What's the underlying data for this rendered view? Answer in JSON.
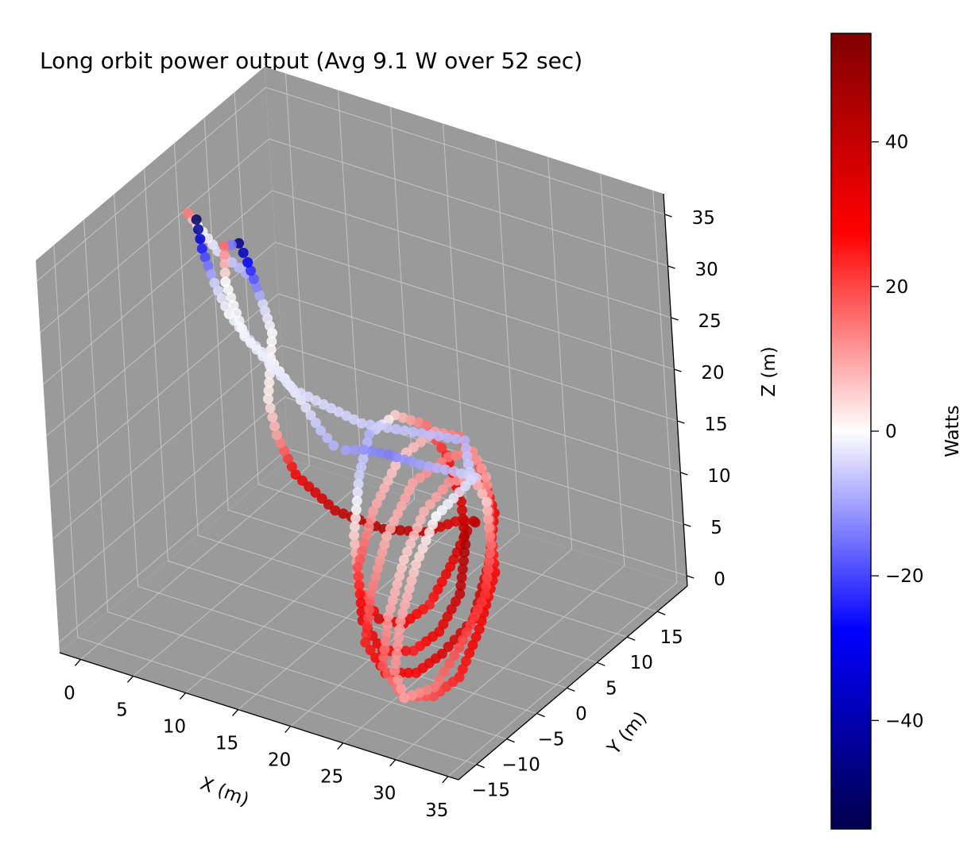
{
  "chart_data": {
    "type": "scatter",
    "projection": "3d",
    "title": "Long orbit power output (Avg 9.1 W over 52 sec)",
    "xlabel": "X (m)",
    "ylabel": "Y (m)",
    "zlabel": "Z (m)",
    "xlim": [
      -2,
      36
    ],
    "ylim": [
      -18,
      20
    ],
    "zlim": [
      -1,
      37
    ],
    "x_ticks": [
      "0",
      "5",
      "10",
      "15",
      "20",
      "25",
      "30",
      "35"
    ],
    "y_ticks": [
      "−15",
      "−10",
      "−5",
      "0",
      "5",
      "10",
      "15"
    ],
    "z_ticks": [
      "0",
      "5",
      "10",
      "15",
      "20",
      "25",
      "30",
      "35"
    ],
    "grid": true,
    "pane_color": "#9a9a9a",
    "colormap": "seismic",
    "colorbar": {
      "label": "Watts",
      "range": [
        -55,
        55
      ],
      "ticks": [
        "40",
        "20",
        "0",
        "−20",
        "−40"
      ],
      "tick_values": [
        40,
        20,
        0,
        -20,
        -40
      ]
    },
    "series": [
      {
        "points": [
          {
            "x": 30,
            "y": -4,
            "z": 23,
            "w": -8
          },
          {
            "x": 25,
            "y": -12,
            "z": 27,
            "w": -5
          },
          {
            "x": 21,
            "y": -16,
            "z": 31,
            "w": -3
          },
          {
            "x": 16,
            "y": -15,
            "z": 34,
            "w": -1
          },
          {
            "x": 12,
            "y": -11,
            "z": 36,
            "w": 0
          },
          {
            "x": 9,
            "y": -6,
            "z": 36,
            "w": 16
          },
          {
            "x": 8,
            "y": -2,
            "z": 34,
            "w": -45
          },
          {
            "x": 7.5,
            "y": 0,
            "z": 31,
            "w": -28
          },
          {
            "x": 7.5,
            "y": 2,
            "z": 26,
            "w": -4
          },
          {
            "x": 7,
            "y": 4,
            "z": 22,
            "w": 0
          },
          {
            "x": 6,
            "y": 5,
            "z": 18,
            "w": 1
          },
          {
            "x": 5,
            "y": 6,
            "z": 14,
            "w": 2
          },
          {
            "x": 5,
            "y": 7,
            "z": 10,
            "w": 10
          },
          {
            "x": 6,
            "y": 8,
            "z": 6,
            "w": 30
          },
          {
            "x": 9,
            "y": 9,
            "z": 3,
            "w": 40
          },
          {
            "x": 13,
            "y": 10,
            "z": 2,
            "w": 44
          },
          {
            "x": 17,
            "y": 10,
            "z": 3,
            "w": 40
          },
          {
            "x": 20,
            "y": 10,
            "z": 5,
            "w": 35
          },
          {
            "x": 23,
            "y": 8,
            "z": 7,
            "w": 38
          },
          {
            "x": 25,
            "y": 5,
            "z": 9,
            "w": 42
          },
          {
            "x": 26,
            "y": 2,
            "z": 10,
            "w": 40
          },
          {
            "x": 26,
            "y": -1,
            "z": 8,
            "w": 32
          },
          {
            "x": 25,
            "y": -3,
            "z": 5,
            "w": 25
          },
          {
            "x": 23,
            "y": -4,
            "z": 3,
            "w": 30
          },
          {
            "x": 20,
            "y": -3,
            "z": 2,
            "w": 35
          },
          {
            "x": 17,
            "y": -1,
            "z": 3,
            "w": 15
          },
          {
            "x": 15,
            "y": 2,
            "z": 6,
            "w": 5
          },
          {
            "x": 14,
            "y": 5,
            "z": 10,
            "w": -5
          },
          {
            "x": 14,
            "y": 7,
            "z": 13,
            "w": -8
          },
          {
            "x": 16,
            "y": 8,
            "z": 15,
            "w": 5
          },
          {
            "x": 19,
            "y": 8,
            "z": 15,
            "w": 15
          },
          {
            "x": 22,
            "y": 6,
            "z": 14,
            "w": 25
          },
          {
            "x": 25,
            "y": 3,
            "z": 12,
            "w": 35
          },
          {
            "x": 27,
            "y": 0,
            "z": 10,
            "w": 45
          },
          {
            "x": 28,
            "y": -3,
            "z": 7,
            "w": 40
          },
          {
            "x": 27,
            "y": -5,
            "z": 4,
            "w": 30
          },
          {
            "x": 25,
            "y": -6,
            "z": 2,
            "w": 25
          },
          {
            "x": 22,
            "y": -6,
            "z": 1,
            "w": 30
          },
          {
            "x": 19,
            "y": -4,
            "z": 2,
            "w": 32
          },
          {
            "x": 17,
            "y": -1,
            "z": 5,
            "w": 20
          },
          {
            "x": 17,
            "y": 2,
            "z": 9,
            "w": 10
          },
          {
            "x": 18,
            "y": 5,
            "z": 13,
            "w": 5
          },
          {
            "x": 21,
            "y": 6,
            "z": 16,
            "w": 10
          },
          {
            "x": 24,
            "y": 5,
            "z": 17,
            "w": 15
          },
          {
            "x": 27,
            "y": 3,
            "z": 16,
            "w": 20
          },
          {
            "x": 30,
            "y": 0,
            "z": 14,
            "w": 30
          },
          {
            "x": 31,
            "y": -3,
            "z": 11,
            "w": 35
          },
          {
            "x": 31,
            "y": -6,
            "z": 7,
            "w": 38
          },
          {
            "x": 29,
            "y": -8,
            "z": 4,
            "w": 35
          },
          {
            "x": 27,
            "y": -9,
            "z": 2,
            "w": 28
          },
          {
            "x": 24,
            "y": -9,
            "z": 1,
            "w": 30
          },
          {
            "x": 21,
            "y": -7,
            "z": 2,
            "w": 25
          },
          {
            "x": 20,
            "y": -4,
            "z": 5,
            "w": 15
          },
          {
            "x": 20,
            "y": -1,
            "z": 9,
            "w": 8
          },
          {
            "x": 21,
            "y": 2,
            "z": 13,
            "w": 10
          },
          {
            "x": 24,
            "y": 3,
            "z": 16,
            "w": 15
          },
          {
            "x": 27,
            "y": 2,
            "z": 18,
            "w": 12
          },
          {
            "x": 30,
            "y": -1,
            "z": 18,
            "w": 10
          },
          {
            "x": 32,
            "y": -4,
            "z": 16,
            "w": 20
          },
          {
            "x": 34,
            "y": -7,
            "z": 13,
            "w": 28
          },
          {
            "x": 34,
            "y": -10,
            "z": 9,
            "w": 30
          },
          {
            "x": 33,
            "y": -12,
            "z": 5,
            "w": 25
          },
          {
            "x": 31,
            "y": -13,
            "z": 3,
            "w": 20
          },
          {
            "x": 28,
            "y": -13,
            "z": 2,
            "w": 15
          },
          {
            "x": 25,
            "y": -11,
            "z": 3,
            "w": 18
          },
          {
            "x": 24,
            "y": -8,
            "z": 6,
            "w": 10
          },
          {
            "x": 24,
            "y": -5,
            "z": 10,
            "w": 5
          },
          {
            "x": 25,
            "y": -3,
            "z": 14,
            "w": 8
          },
          {
            "x": 27,
            "y": -2,
            "z": 17,
            "w": 12
          },
          {
            "x": 30,
            "y": -3,
            "z": 19,
            "w": 10
          },
          {
            "x": 33,
            "y": -6,
            "z": 19,
            "w": 5
          },
          {
            "x": 35,
            "y": -9,
            "z": 17,
            "w": 15
          },
          {
            "x": 36,
            "y": -12,
            "z": 14,
            "w": 22
          },
          {
            "x": 35,
            "y": -15,
            "z": 10,
            "w": 20
          },
          {
            "x": 33,
            "y": -16,
            "z": 6,
            "w": 15
          },
          {
            "x": 30,
            "y": -16,
            "z": 4,
            "w": 10
          },
          {
            "x": 28,
            "y": -14,
            "z": 5,
            "w": 12
          },
          {
            "x": 27,
            "y": -11,
            "z": 8,
            "w": 10
          },
          {
            "x": 27,
            "y": -8,
            "z": 12,
            "w": 5
          },
          {
            "x": 28,
            "y": -6,
            "z": 16,
            "w": 0
          },
          {
            "x": 31,
            "y": -5,
            "z": 20,
            "w": -4
          },
          {
            "x": 30,
            "y": -4,
            "z": 23,
            "w": -8
          }
        ]
      },
      {
        "points": [
          {
            "x": 3,
            "y": 8,
            "z": 24,
            "w": -10
          },
          {
            "x": 1,
            "y": 6,
            "z": 27,
            "w": -3
          },
          {
            "x": 1,
            "y": 3,
            "z": 31,
            "w": 0
          },
          {
            "x": 2,
            "y": 0,
            "z": 34,
            "w": 14
          },
          {
            "x": 4,
            "y": -2,
            "z": 35,
            "w": -52
          },
          {
            "x": 5,
            "y": -3,
            "z": 33,
            "w": -25
          },
          {
            "x": 6,
            "y": -3,
            "z": 30,
            "w": -5
          },
          {
            "x": 6,
            "y": -1,
            "z": 26,
            "w": 0
          },
          {
            "x": 6,
            "y": 2,
            "z": 22,
            "w": -4
          },
          {
            "x": 7,
            "y": 4,
            "z": 19,
            "w": 0
          },
          {
            "x": 10,
            "y": 3,
            "z": 17,
            "w": -2
          },
          {
            "x": 13,
            "y": 1,
            "z": 16,
            "w": -6
          },
          {
            "x": 16,
            "y": -2,
            "z": 17,
            "w": -8
          },
          {
            "x": 19,
            "y": -5,
            "z": 19,
            "w": -10
          },
          {
            "x": 22,
            "y": -7,
            "z": 21,
            "w": -12
          },
          {
            "x": 25,
            "y": -8,
            "z": 22,
            "w": -14
          },
          {
            "x": 28,
            "y": -8,
            "z": 22,
            "w": -10
          },
          {
            "x": 30,
            "y": -6,
            "z": 21,
            "w": -6
          },
          {
            "x": 31,
            "y": -3,
            "z": 19,
            "w": -4
          }
        ]
      }
    ]
  }
}
